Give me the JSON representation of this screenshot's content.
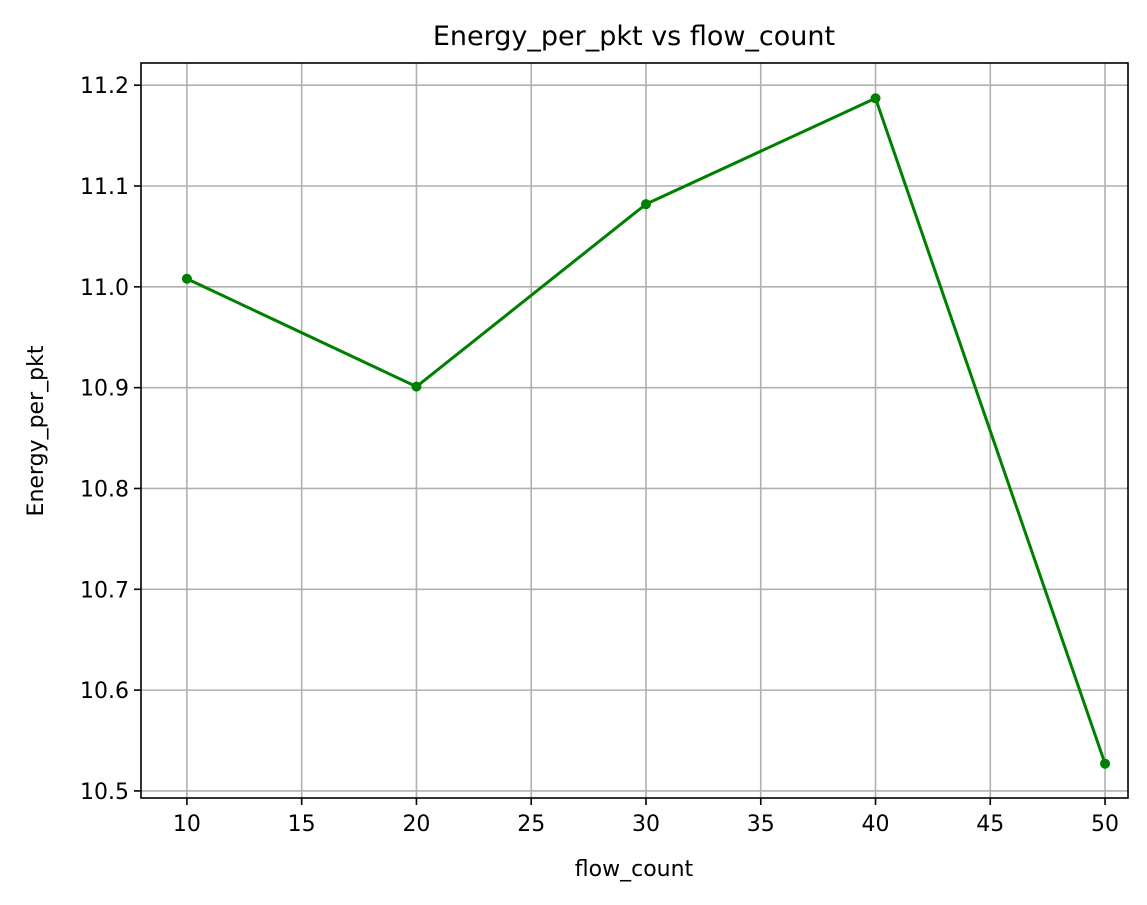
{
  "chart_data": {
    "type": "line",
    "title": "Energy_per_pkt vs flow_count",
    "xlabel": "flow_count",
    "ylabel": "Energy_per_pkt",
    "x": [
      10,
      20,
      30,
      40,
      50
    ],
    "series": [
      {
        "values": [
          11.008,
          10.901,
          11.082,
          11.187,
          10.527
        ],
        "color": "#008000",
        "marker": "circle"
      }
    ],
    "xlim": [
      8,
      51
    ],
    "ylim": [
      10.493,
      11.222
    ],
    "xticks": [
      10,
      15,
      20,
      25,
      30,
      35,
      40,
      45,
      50
    ],
    "xtick_labels": [
      "10",
      "15",
      "20",
      "25",
      "30",
      "35",
      "40",
      "45",
      "50"
    ],
    "yticks": [
      10.5,
      10.6,
      10.7,
      10.8,
      10.9,
      11.0,
      11.1,
      11.2
    ],
    "ytick_labels": [
      "10.5",
      "10.6",
      "10.7",
      "10.8",
      "10.9",
      "11.0",
      "11.1",
      "11.2"
    ],
    "grid": true,
    "legend": "none"
  }
}
